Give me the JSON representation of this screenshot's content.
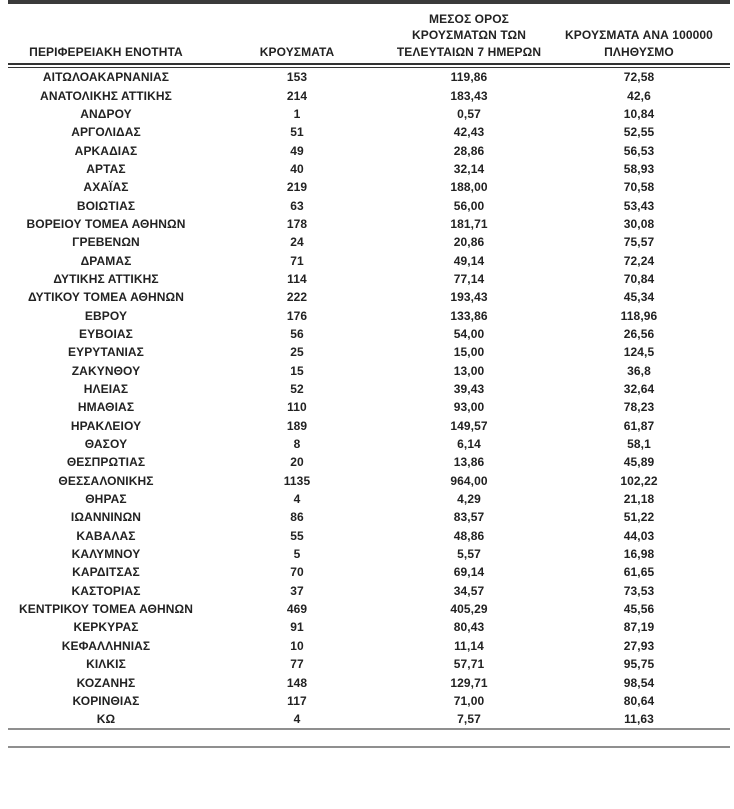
{
  "table": {
    "headers": [
      {
        "id": "region",
        "lines": [
          "ΠΕΡΙΦΕΡΕΙΑΚΗ ΕΝΟΤΗΤΑ"
        ]
      },
      {
        "id": "cases",
        "lines": [
          "ΚΡΟΥΣΜΑΤΑ"
        ]
      },
      {
        "id": "avg7",
        "lines": [
          "ΜΕΣΟΣ ΟΡΟΣ",
          "ΚΡΟΥΣΜΑΤΩΝ ΤΩΝ",
          "ΤΕΛΕΥΤΑΙΩΝ 7 ΗΜΕΡΩΝ"
        ]
      },
      {
        "id": "per100k",
        "lines": [
          "ΚΡΟΥΣΜΑΤΑ ΑΝΑ 100000",
          "ΠΛΗΘΥΣΜΟ"
        ]
      }
    ],
    "rows": [
      [
        "ΑΙΤΩΛΟΑΚΑΡΝΑΝΙΑΣ",
        "153",
        "119,86",
        "72,58"
      ],
      [
        "ΑΝΑΤΟΛΙΚΗΣ ΑΤΤΙΚΗΣ",
        "214",
        "183,43",
        "42,6"
      ],
      [
        "ΑΝΔΡΟΥ",
        "1",
        "0,57",
        "10,84"
      ],
      [
        "ΑΡΓΟΛΙΔΑΣ",
        "51",
        "42,43",
        "52,55"
      ],
      [
        "ΑΡΚΑΔΙΑΣ",
        "49",
        "28,86",
        "56,53"
      ],
      [
        "ΑΡΤΑΣ",
        "40",
        "32,14",
        "58,93"
      ],
      [
        "ΑΧΑΪΑΣ",
        "219",
        "188,00",
        "70,58"
      ],
      [
        "ΒΟΙΩΤΙΑΣ",
        "63",
        "56,00",
        "53,43"
      ],
      [
        "ΒΟΡΕΙΟΥ ΤΟΜΕΑ ΑΘΗΝΩΝ",
        "178",
        "181,71",
        "30,08"
      ],
      [
        "ΓΡΕΒΕΝΩΝ",
        "24",
        "20,86",
        "75,57"
      ],
      [
        "ΔΡΑΜΑΣ",
        "71",
        "49,14",
        "72,24"
      ],
      [
        "ΔΥΤΙΚΗΣ ΑΤΤΙΚΗΣ",
        "114",
        "77,14",
        "70,84"
      ],
      [
        "ΔΥΤΙΚΟΥ ΤΟΜΕΑ ΑΘΗΝΩΝ",
        "222",
        "193,43",
        "45,34"
      ],
      [
        "ΕΒΡΟΥ",
        "176",
        "133,86",
        "118,96"
      ],
      [
        "ΕΥΒΟΙΑΣ",
        "56",
        "54,00",
        "26,56"
      ],
      [
        "ΕΥΡΥΤΑΝΙΑΣ",
        "25",
        "15,00",
        "124,5"
      ],
      [
        "ΖΑΚΥΝΘΟΥ",
        "15",
        "13,00",
        "36,8"
      ],
      [
        "ΗΛΕΙΑΣ",
        "52",
        "39,43",
        "32,64"
      ],
      [
        "ΗΜΑΘΙΑΣ",
        "110",
        "93,00",
        "78,23"
      ],
      [
        "ΗΡΑΚΛΕΙΟΥ",
        "189",
        "149,57",
        "61,87"
      ],
      [
        "ΘΑΣΟΥ",
        "8",
        "6,14",
        "58,1"
      ],
      [
        "ΘΕΣΠΡΩΤΙΑΣ",
        "20",
        "13,86",
        "45,89"
      ],
      [
        "ΘΕΣΣΑΛΟΝΙΚΗΣ",
        "1135",
        "964,00",
        "102,22"
      ],
      [
        "ΘΗΡΑΣ",
        "4",
        "4,29",
        "21,18"
      ],
      [
        "ΙΩΑΝΝΙΝΩΝ",
        "86",
        "83,57",
        "51,22"
      ],
      [
        "ΚΑΒΑΛΑΣ",
        "55",
        "48,86",
        "44,03"
      ],
      [
        "ΚΑΛΥΜΝΟΥ",
        "5",
        "5,57",
        "16,98"
      ],
      [
        "ΚΑΡΔΙΤΣΑΣ",
        "70",
        "69,14",
        "61,65"
      ],
      [
        "ΚΑΣΤΟΡΙΑΣ",
        "37",
        "34,57",
        "73,53"
      ],
      [
        "ΚΕΝΤΡΙΚΟΥ ΤΟΜΕΑ ΑΘΗΝΩΝ",
        "469",
        "405,29",
        "45,56"
      ],
      [
        "ΚΕΡΚΥΡΑΣ",
        "91",
        "80,43",
        "87,19"
      ],
      [
        "ΚΕΦΑΛΛΗΝΙΑΣ",
        "10",
        "11,14",
        "27,93"
      ],
      [
        "ΚΙΛΚΙΣ",
        "77",
        "57,71",
        "95,75"
      ],
      [
        "ΚΟΖΑΝΗΣ",
        "148",
        "129,71",
        "98,54"
      ],
      [
        "ΚΟΡΙΝΘΙΑΣ",
        "117",
        "71,00",
        "80,64"
      ],
      [
        "ΚΩ",
        "4",
        "7,57",
        "11,63"
      ]
    ]
  },
  "colors": {
    "text": "#222222",
    "rule_dark": "#3a3a3a",
    "rule_gray": "#8f8f8f",
    "background": "#ffffff"
  }
}
